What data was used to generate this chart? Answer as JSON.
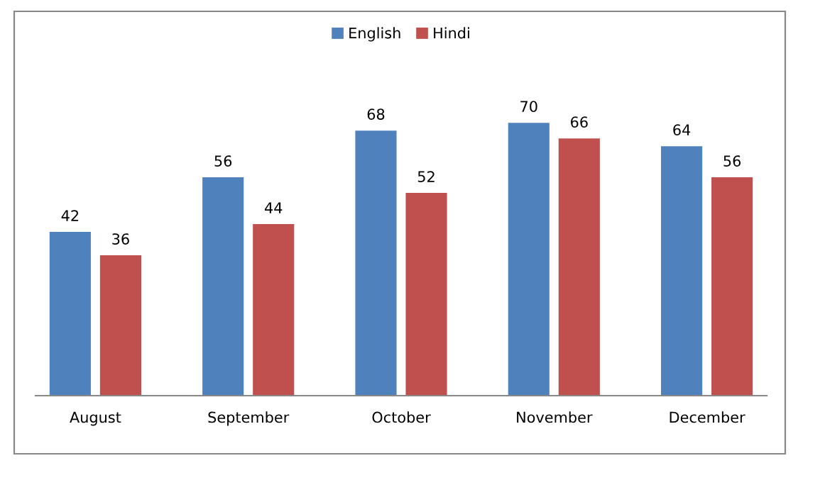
{
  "chart_data": {
    "type": "bar",
    "categories": [
      "August",
      "September",
      "October",
      "November",
      "December"
    ],
    "series": [
      {
        "name": "English",
        "color": "#4f81bd",
        "values": [
          42,
          56,
          68,
          70,
          64
        ]
      },
      {
        "name": "Hindi",
        "color": "#c0504d",
        "values": [
          36,
          44,
          52,
          66,
          56
        ]
      }
    ],
    "data_labels": true,
    "legend": "top",
    "grid": false
  }
}
